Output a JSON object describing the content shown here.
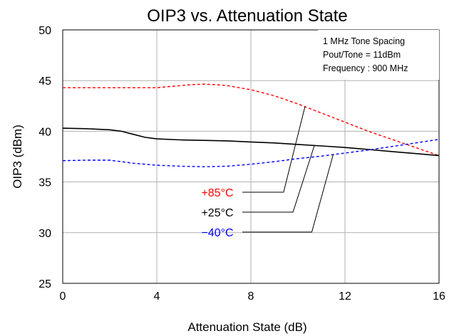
{
  "chart_data": {
    "type": "line",
    "title": "OIP3 vs. Attenuation State",
    "xlabel": "Attenuation State (dB)",
    "ylabel": "OIP3 (dBm)",
    "xlim": [
      0,
      16
    ],
    "ylim": [
      25,
      50
    ],
    "xticks": [
      0,
      4,
      8,
      12,
      16
    ],
    "yticks": [
      25,
      30,
      35,
      40,
      45,
      50
    ],
    "grid": true,
    "annotation_box": [
      "1 MHz Tone Spacing",
      "Pout/Tone = 11dBm",
      "Frequency : 900 MHz"
    ],
    "series": [
      {
        "name": "+85°C",
        "color": "#ff0000",
        "dash": "dashed",
        "x": [
          0,
          1,
          2,
          3,
          4,
          4.5,
          5,
          5.5,
          6,
          6.5,
          7,
          8,
          9,
          10,
          11,
          12,
          13,
          14,
          15,
          16
        ],
        "values": [
          44.3,
          44.3,
          44.3,
          44.3,
          44.3,
          44.4,
          44.5,
          44.6,
          44.65,
          44.6,
          44.5,
          44.1,
          43.5,
          42.7,
          41.8,
          40.9,
          40.0,
          39.2,
          38.4,
          37.6
        ]
      },
      {
        "name": "+25°C",
        "color": "#000000",
        "dash": "solid",
        "x": [
          0,
          1,
          2,
          2.5,
          3,
          3.5,
          4,
          5,
          6,
          7,
          8,
          9,
          10,
          11,
          12,
          13,
          14,
          15,
          16
        ],
        "values": [
          40.3,
          40.25,
          40.15,
          40.0,
          39.7,
          39.4,
          39.25,
          39.15,
          39.1,
          39.05,
          38.95,
          38.85,
          38.7,
          38.55,
          38.4,
          38.2,
          38.0,
          37.8,
          37.6
        ]
      },
      {
        "name": "−40°C",
        "color": "#0000ff",
        "dash": "dashed",
        "x": [
          0,
          1,
          2,
          3,
          4,
          5,
          6,
          7,
          8,
          9,
          10,
          11,
          12,
          13,
          14,
          15,
          16
        ],
        "values": [
          37.1,
          37.15,
          37.15,
          36.85,
          36.65,
          36.55,
          36.5,
          36.55,
          36.75,
          37.0,
          37.3,
          37.55,
          37.85,
          38.15,
          38.5,
          38.85,
          39.2
        ]
      }
    ],
    "legend_labels": [
      {
        "series": 0,
        "label": "+85°C",
        "color": "#ff0000",
        "x_at": 10.3
      },
      {
        "series": 1,
        "label": "+25°C",
        "color": "#000000",
        "x_at": 10.7
      },
      {
        "series": 2,
        "label": "−40°C",
        "color": "#0000ff",
        "x_at": 11.5
      }
    ]
  }
}
